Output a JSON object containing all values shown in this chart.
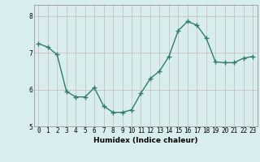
{
  "x": [
    0,
    1,
    2,
    3,
    4,
    5,
    6,
    7,
    8,
    9,
    10,
    11,
    12,
    13,
    14,
    15,
    16,
    17,
    18,
    19,
    20,
    21,
    22,
    23
  ],
  "y": [
    7.25,
    7.15,
    6.95,
    5.95,
    5.8,
    5.8,
    6.05,
    5.55,
    5.38,
    5.38,
    5.45,
    5.9,
    6.3,
    6.5,
    6.9,
    7.6,
    7.85,
    7.75,
    7.4,
    6.75,
    6.73,
    6.73,
    6.85,
    6.9
  ],
  "line_color": "#2e7d6e",
  "marker": "+",
  "marker_size": 4,
  "bg_color": "#d8eeee",
  "grid_color_v": "#c8dcdc",
  "grid_color_h": "#c8b8b8",
  "xlabel": "Humidex (Indice chaleur)",
  "ylim": [
    5.0,
    8.3
  ],
  "xlim": [
    -0.5,
    23.5
  ],
  "yticks": [
    5,
    6,
    7,
    8
  ],
  "xticks": [
    0,
    1,
    2,
    3,
    4,
    5,
    6,
    7,
    8,
    9,
    10,
    11,
    12,
    13,
    14,
    15,
    16,
    17,
    18,
    19,
    20,
    21,
    22,
    23
  ],
  "xlabel_fontsize": 6.5,
  "tick_fontsize": 5.5,
  "linewidth": 1.0,
  "marker_linewidth": 1.0
}
